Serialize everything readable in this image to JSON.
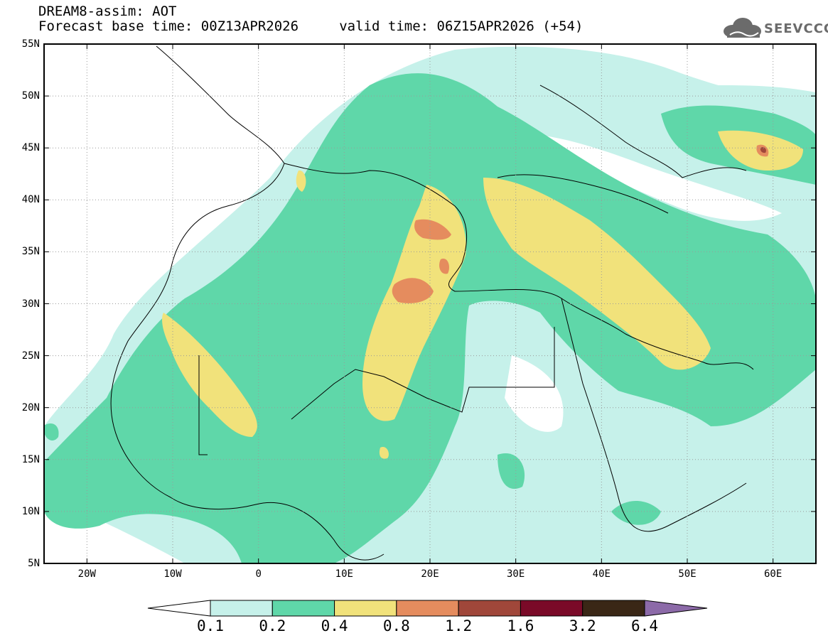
{
  "header": {
    "title_line1": "DREAM8-assim: AOT",
    "title_line2": "Forecast base time: 00Z13APR2026     valid time: 06Z15APR2026 (+54)"
  },
  "logo": {
    "text": "SEEVCCC",
    "icon": "cloud-icon"
  },
  "map": {
    "lat_labels": [
      "55N",
      "50N",
      "45N",
      "40N",
      "35N",
      "30N",
      "25N",
      "20N",
      "15N",
      "10N",
      "5N"
    ],
    "lon_labels": [
      "20W",
      "10W",
      "0",
      "10E",
      "20E",
      "30E",
      "40E",
      "50E",
      "60E"
    ],
    "lat_range": [
      5,
      55
    ],
    "lon_range": [
      -25,
      65
    ],
    "grid": true
  },
  "colorbar": {
    "labels": [
      "0.1",
      "0.2",
      "0.4",
      "0.8",
      "1.2",
      "1.6",
      "3.2",
      "6.4"
    ],
    "colors": [
      "#ffffff",
      "#c6f1ea",
      "#5fd7a9",
      "#f1e27b",
      "#e58c5e",
      "#a0473a",
      "#7a0a28",
      "#3a2716",
      "#8c6aa8"
    ]
  }
}
